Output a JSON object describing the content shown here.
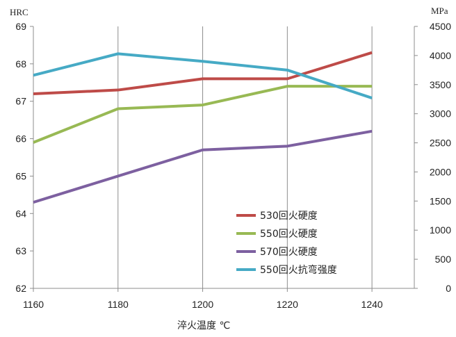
{
  "chart_data": {
    "type": "line",
    "title": "",
    "xlabel": "淬火温度 ℃",
    "ylabel_left": "HRC",
    "ylabel_right": "MPa",
    "x": [
      1160,
      1180,
      1200,
      1220,
      1240
    ],
    "x_ticks": [
      "1160",
      "1180",
      "1200",
      "1220",
      "1240"
    ],
    "ylim_left": [
      62,
      69
    ],
    "y_ticks_left": [
      "62",
      "63",
      "64",
      "65",
      "66",
      "67",
      "68",
      "69"
    ],
    "ylim_right": [
      0,
      4500
    ],
    "y_ticks_right": [
      "0",
      "500",
      "1000",
      "1500",
      "2000",
      "2500",
      "3000",
      "3500",
      "4000",
      "4500"
    ],
    "grid": "vertical",
    "legend_position": "bottom-center",
    "series": [
      {
        "name": "530回火硬度",
        "axis": "left",
        "color": "#be4b48",
        "values": [
          67.2,
          67.3,
          67.6,
          67.6,
          68.3
        ]
      },
      {
        "name": "550回火硬度",
        "axis": "left",
        "color": "#98b954",
        "values": [
          65.9,
          66.8,
          66.9,
          67.4,
          67.4
        ]
      },
      {
        "name": "570回火硬度",
        "axis": "left",
        "color": "#7d60a0",
        "values": [
          64.3,
          65.0,
          65.7,
          65.8,
          66.2
        ]
      },
      {
        "name": "550回火抗弯强度",
        "axis": "right",
        "color": "#46aac5",
        "values": [
          3660,
          4030,
          3900,
          3750,
          3270
        ]
      }
    ]
  }
}
